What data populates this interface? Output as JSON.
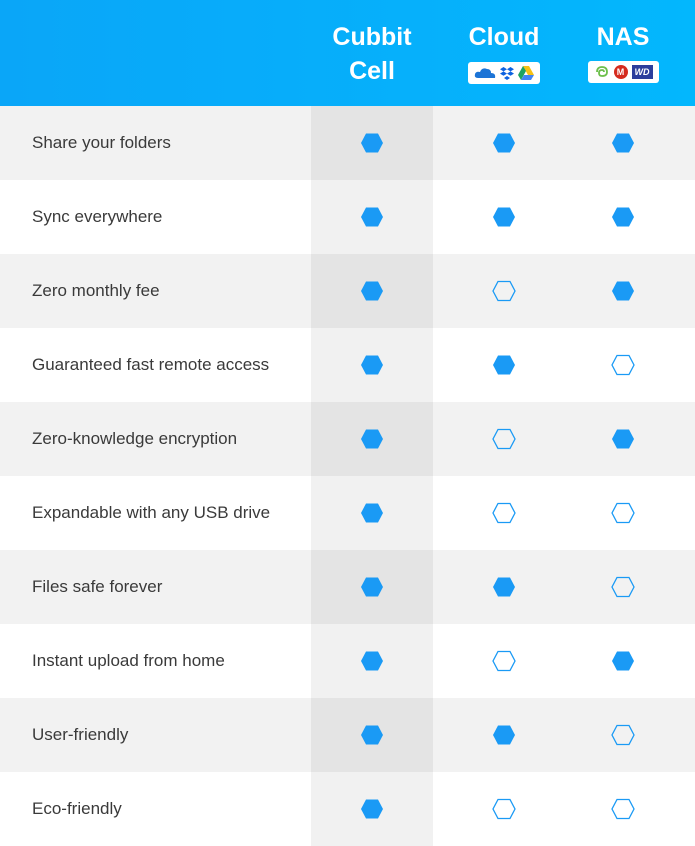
{
  "header": {
    "columns": [
      {
        "title_line1": "Cubbit",
        "title_line2": "Cell"
      },
      {
        "title_line1": "Cloud",
        "logos": [
          "onedrive-icon",
          "dropbox-icon",
          "google-drive-icon"
        ]
      },
      {
        "title_line1": "NAS",
        "logos": [
          "seagate-icon",
          "maxtor-icon",
          "wd-icon"
        ]
      }
    ],
    "wd_text": "WD",
    "maxtor_text": "M"
  },
  "colors": {
    "header": "#0aa6f8",
    "hexagon": "#1a9af5"
  },
  "rows": [
    {
      "feature": "Share your folders",
      "values": [
        true,
        true,
        true
      ]
    },
    {
      "feature": "Sync everywhere",
      "values": [
        true,
        true,
        true
      ]
    },
    {
      "feature": "Zero monthly fee",
      "values": [
        true,
        false,
        true
      ]
    },
    {
      "feature": "Guaranteed fast remote access",
      "values": [
        true,
        true,
        false
      ]
    },
    {
      "feature": "Zero-knowledge encryption",
      "values": [
        true,
        false,
        true
      ]
    },
    {
      "feature": "Expandable with any USB drive",
      "values": [
        true,
        false,
        false
      ]
    },
    {
      "feature": "Files safe forever",
      "values": [
        true,
        true,
        false
      ]
    },
    {
      "feature": "Instant upload from home",
      "values": [
        true,
        false,
        true
      ]
    },
    {
      "feature": "User-friendly",
      "values": [
        true,
        true,
        false
      ]
    },
    {
      "feature": "Eco-friendly",
      "values": [
        true,
        false,
        false
      ]
    }
  ]
}
